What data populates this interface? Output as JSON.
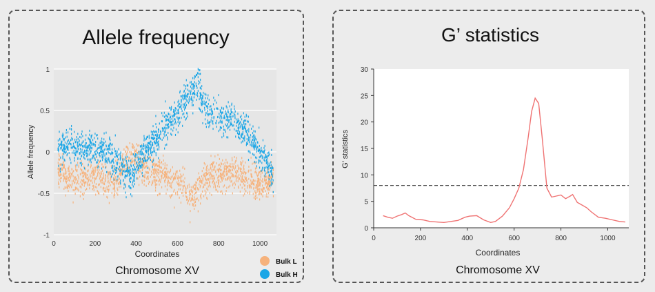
{
  "colors": {
    "bulk_l": "#f6b27c",
    "bulk_h": "#1ba6e6",
    "g_line": "#ef7272",
    "threshold": "#333333",
    "plot_bg_left": "#e6e6e6",
    "plot_bg_right": "#ffffff"
  },
  "chart_data": [
    {
      "type": "scatter",
      "title": "Allele frequency",
      "subtitle": "Chromosome XV",
      "xlabel": "Coordinates",
      "ylabel": "Allele frequency",
      "xlim": [
        0,
        1080
      ],
      "ylim": [
        -1,
        1
      ],
      "xticks": [
        0,
        200,
        400,
        600,
        800,
        1000
      ],
      "xtick_labels": [
        "0",
        "200",
        "400",
        "600",
        "800",
        "1000"
      ],
      "yticks": [
        -1,
        -0.5,
        0,
        0.5,
        1
      ],
      "ytick_labels": [
        "-1",
        "-0.5",
        "0",
        "0.5",
        "1"
      ],
      "grid": true,
      "legend": {
        "position": "bottom-right",
        "entries": [
          "Bulk L",
          "Bulk H"
        ]
      },
      "point_count_per_series": 1500,
      "series": [
        {
          "name": "Bulk H",
          "trend": {
            "x": [
              20,
              60,
              100,
              150,
              200,
              260,
              300,
              330,
              360,
              380,
              420,
              460,
              500,
              540,
              580,
              620,
              650,
              680,
              700,
              730,
              760,
              800,
              840,
              880,
              920,
              960,
              1000,
              1040,
              1060
            ],
            "y": [
              0.05,
              0.1,
              0.08,
              0.03,
              0.05,
              0.0,
              -0.1,
              -0.2,
              -0.3,
              -0.25,
              -0.1,
              0.05,
              0.15,
              0.28,
              0.4,
              0.55,
              0.65,
              0.75,
              0.82,
              0.55,
              0.45,
              0.42,
              0.4,
              0.35,
              0.3,
              0.15,
              0.0,
              -0.15,
              -0.25
            ]
          }
        },
        {
          "name": "Bulk L",
          "trend": {
            "x": [
              20,
              60,
              100,
              150,
              200,
              260,
              300,
              330,
              360,
              380,
              420,
              460,
              500,
              540,
              580,
              620,
              650,
              680,
              700,
              730,
              760,
              800,
              840,
              880,
              920,
              960,
              1000,
              1040,
              1060
            ],
            "y": [
              -0.2,
              -0.3,
              -0.35,
              -0.28,
              -0.3,
              -0.35,
              -0.32,
              -0.2,
              -0.1,
              -0.05,
              -0.15,
              -0.22,
              -0.25,
              -0.3,
              -0.35,
              -0.4,
              -0.5,
              -0.55,
              -0.48,
              -0.35,
              -0.3,
              -0.28,
              -0.25,
              -0.22,
              -0.3,
              -0.35,
              -0.4,
              -0.35,
              -0.3
            ]
          }
        }
      ]
    },
    {
      "type": "line",
      "title": "G’ statistics",
      "subtitle": "Chromosome XV",
      "xlabel": "Coordinates",
      "ylabel": "G’ statistics",
      "xlim": [
        0,
        1090
      ],
      "ylim": [
        0,
        30
      ],
      "xticks": [
        0,
        200,
        400,
        600,
        800,
        1000
      ],
      "xtick_labels": [
        "0",
        "200",
        "400",
        "600",
        "800",
        "1000"
      ],
      "yticks": [
        0,
        5,
        10,
        15,
        20,
        25,
        30
      ],
      "ytick_labels": [
        "0",
        "5",
        "10",
        "15",
        "20",
        "25",
        "30"
      ],
      "threshold": 8,
      "series": [
        {
          "name": "G’",
          "x": [
            40,
            60,
            80,
            100,
            120,
            135,
            150,
            180,
            210,
            240,
            270,
            300,
            330,
            360,
            390,
            410,
            440,
            470,
            500,
            520,
            550,
            580,
            600,
            620,
            640,
            660,
            675,
            690,
            705,
            720,
            740,
            760,
            780,
            800,
            820,
            840,
            850,
            870,
            890,
            910,
            930,
            960,
            990,
            1020,
            1050,
            1075
          ],
          "y": [
            2.3,
            2.0,
            1.8,
            2.2,
            2.5,
            2.8,
            2.3,
            1.6,
            1.5,
            1.2,
            1.1,
            1.0,
            1.2,
            1.4,
            2.0,
            2.2,
            2.3,
            1.5,
            1.0,
            1.2,
            2.2,
            3.8,
            5.5,
            7.5,
            11.0,
            17.0,
            22.0,
            24.5,
            23.5,
            17.0,
            7.5,
            5.8,
            6.0,
            6.2,
            5.5,
            6.0,
            6.3,
            4.8,
            4.3,
            3.8,
            3.0,
            2.0,
            1.8,
            1.5,
            1.2,
            1.1
          ]
        }
      ]
    }
  ]
}
